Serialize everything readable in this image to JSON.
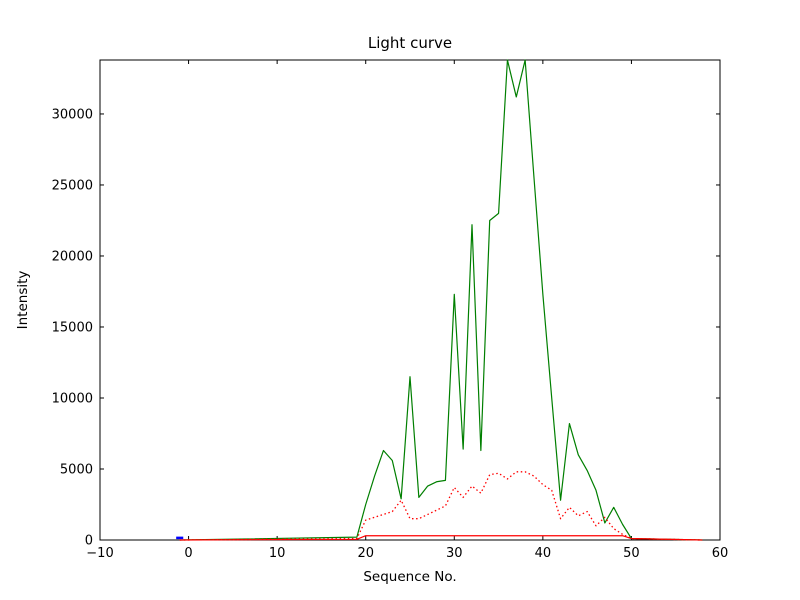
{
  "chart_data": {
    "type": "line",
    "title": "Light curve",
    "xlabel": "Sequence No.",
    "ylabel": "Intensity",
    "xlim": [
      -10,
      60
    ],
    "ylim": [
      0,
      33800
    ],
    "x_ticks": [
      -10,
      0,
      10,
      20,
      30,
      40,
      50,
      60
    ],
    "y_ticks": [
      0,
      5000,
      10000,
      15000,
      20000,
      25000,
      30000
    ],
    "grid": false,
    "legend": null,
    "background": "#ffffff",
    "frame_color": "#000000",
    "series": [
      {
        "name": "total-intensity",
        "color": "#007f00",
        "style": "solid",
        "linewidth": 1.2,
        "x": [
          -1,
          19,
          20,
          21,
          22,
          23,
          24,
          25,
          26,
          27,
          28,
          29,
          30,
          31,
          32,
          33,
          34,
          35,
          36,
          37,
          38,
          39,
          40,
          41,
          42,
          43,
          44,
          45,
          46,
          47,
          48,
          49,
          50,
          58
        ],
        "y": [
          0,
          200,
          2500,
          4500,
          6300,
          5600,
          2900,
          11500,
          3000,
          3800,
          4100,
          4200,
          17300,
          6400,
          22200,
          6300,
          22500,
          23000,
          33800,
          31200,
          33800,
          25500,
          17300,
          10000,
          2800,
          8200,
          6000,
          4900,
          3500,
          1200,
          2300,
          1100,
          100,
          0
        ]
      },
      {
        "name": "background-intensity",
        "color": "#ff0000",
        "style": "dotted",
        "linewidth": 1.3,
        "x": [
          -1,
          19,
          20,
          21,
          22,
          23,
          24,
          25,
          26,
          27,
          28,
          29,
          30,
          31,
          32,
          33,
          34,
          35,
          36,
          37,
          38,
          39,
          40,
          41,
          42,
          43,
          44,
          45,
          46,
          47,
          48,
          49,
          50,
          58
        ],
        "y": [
          0,
          100,
          1400,
          1600,
          1800,
          2000,
          2800,
          1500,
          1500,
          1800,
          2100,
          2400,
          3700,
          3000,
          3800,
          3300,
          4600,
          4700,
          4300,
          4800,
          4800,
          4500,
          3900,
          3500,
          1500,
          2300,
          1700,
          2000,
          1000,
          1600,
          800,
          400,
          100,
          0
        ]
      },
      {
        "name": "baseline-intensity",
        "color": "#ff0000",
        "style": "solid",
        "linewidth": 1.2,
        "x": [
          -1,
          19,
          20,
          49,
          50,
          58
        ],
        "y": [
          0,
          50,
          300,
          300,
          100,
          0
        ]
      },
      {
        "name": "start-marker",
        "color": "#0000ff",
        "style": "solid",
        "linewidth": 2.5,
        "x": [
          -1.4,
          -0.6
        ],
        "y": [
          150,
          150
        ]
      }
    ]
  }
}
